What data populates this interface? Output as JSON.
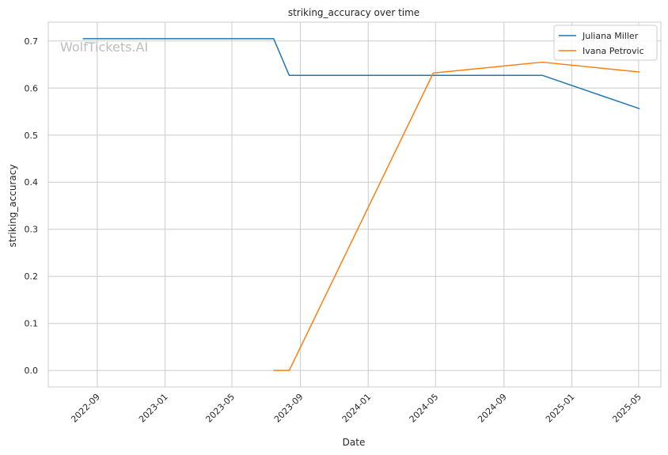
{
  "chart_data": {
    "type": "line",
    "title": "striking_accuracy over time",
    "xlabel": "Date",
    "ylabel": "striking_accuracy",
    "watermark": "WolfTickets.AI",
    "xlim": [
      "2022-06-05",
      "2025-06-10"
    ],
    "ylim": [
      -0.035,
      0.74
    ],
    "x_ticks": [
      "2022-09",
      "2023-01",
      "2023-05",
      "2023-09",
      "2024-01",
      "2024-05",
      "2024-09",
      "2025-01",
      "2025-05"
    ],
    "x_tick_dates": [
      "2022-09-01",
      "2023-01-01",
      "2023-05-01",
      "2023-09-01",
      "2024-01-01",
      "2024-05-01",
      "2024-09-01",
      "2025-01-01",
      "2025-05-01"
    ],
    "y_ticks": [
      "0.0",
      "0.1",
      "0.2",
      "0.3",
      "0.4",
      "0.5",
      "0.6",
      "0.7"
    ],
    "y_tick_values": [
      0.0,
      0.1,
      0.2,
      0.3,
      0.4,
      0.5,
      0.6,
      0.7
    ],
    "grid": true,
    "legend_position": "top-right",
    "series": [
      {
        "name": "Juliana Miller",
        "color": "#1f77b4",
        "x": [
          "2022-08-06",
          "2023-07-15",
          "2023-08-12",
          "2024-04-27",
          "2024-11-09",
          "2025-05-03"
        ],
        "y": [
          0.705,
          0.705,
          0.627,
          0.627,
          0.627,
          0.556
        ]
      },
      {
        "name": "Ivana Petrovic",
        "color": "#ff7f0e",
        "x": [
          "2023-07-15",
          "2023-08-12",
          "2024-04-27",
          "2024-11-09",
          "2025-05-03"
        ],
        "y": [
          0.0,
          0.0,
          0.632,
          0.655,
          0.634
        ]
      }
    ]
  }
}
